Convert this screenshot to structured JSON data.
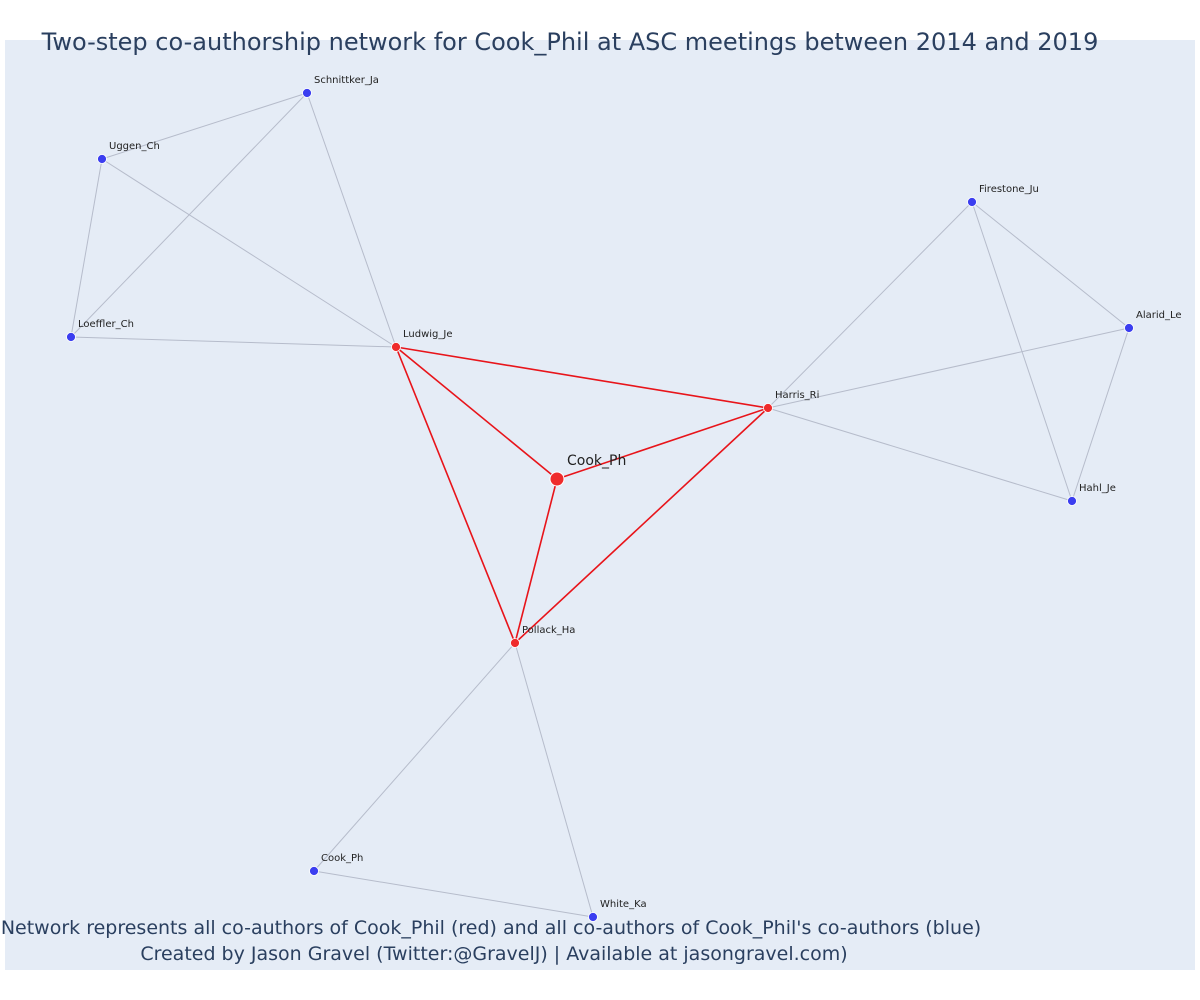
{
  "title": "Two-step co-authorship network for Cook_Phil at ASC meetings between 2014 and 2019",
  "footer": {
    "line1": "Network represents all co-authors of Cook_Phil (red) and all co-authors of Cook_Phil's co-authors (blue)",
    "line2": "Created by Jason Gravel (Twitter:@GravelJ) | Available at jasongravel.com)"
  },
  "colors": {
    "background": "#e5ecf6",
    "text": "#2a3f5f",
    "direct_node": "#ef2b2b",
    "second_node": "#3b3ef0",
    "direct_edge": "#e8141a",
    "second_edge": "#b6bccb"
  },
  "chart_data": {
    "type": "network",
    "focal": "Cook_Ph",
    "nodes": [
      {
        "id": "Cook_Ph",
        "group": "focal"
      },
      {
        "id": "Ludwig_Je",
        "group": "coauthor"
      },
      {
        "id": "Harris_Ri",
        "group": "coauthor"
      },
      {
        "id": "Pollack_Ha",
        "group": "coauthor"
      },
      {
        "id": "Schnittker_Ja",
        "group": "second"
      },
      {
        "id": "Uggen_Ch",
        "group": "second"
      },
      {
        "id": "Loeffler_Ch",
        "group": "second"
      },
      {
        "id": "Firestone_Ju",
        "group": "second"
      },
      {
        "id": "Alarid_Le",
        "group": "second"
      },
      {
        "id": "Hahl_Je",
        "group": "second"
      },
      {
        "id": "Cook_Ph (2)",
        "label": "Cook_Ph",
        "group": "second"
      },
      {
        "id": "White_Ka",
        "group": "second"
      }
    ],
    "edges": [
      {
        "source": "Cook_Ph",
        "target": "Ludwig_Je",
        "group": "direct"
      },
      {
        "source": "Cook_Ph",
        "target": "Harris_Ri",
        "group": "direct"
      },
      {
        "source": "Cook_Ph",
        "target": "Pollack_Ha",
        "group": "direct"
      },
      {
        "source": "Ludwig_Je",
        "target": "Harris_Ri",
        "group": "direct"
      },
      {
        "source": "Ludwig_Je",
        "target": "Pollack_Ha",
        "group": "direct"
      },
      {
        "source": "Harris_Ri",
        "target": "Pollack_Ha",
        "group": "direct"
      },
      {
        "source": "Schnittker_Ja",
        "target": "Uggen_Ch",
        "group": "second"
      },
      {
        "source": "Schnittker_Ja",
        "target": "Loeffler_Ch",
        "group": "second"
      },
      {
        "source": "Schnittker_Ja",
        "target": "Ludwig_Je",
        "group": "second"
      },
      {
        "source": "Uggen_Ch",
        "target": "Loeffler_Ch",
        "group": "second"
      },
      {
        "source": "Uggen_Ch",
        "target": "Ludwig_Je",
        "group": "second"
      },
      {
        "source": "Loeffler_Ch",
        "target": "Ludwig_Je",
        "group": "second"
      },
      {
        "source": "Firestone_Ju",
        "target": "Harris_Ri",
        "group": "second"
      },
      {
        "source": "Firestone_Ju",
        "target": "Alarid_Le",
        "group": "second"
      },
      {
        "source": "Firestone_Ju",
        "target": "Hahl_Je",
        "group": "second"
      },
      {
        "source": "Alarid_Le",
        "target": "Harris_Ri",
        "group": "second"
      },
      {
        "source": "Alarid_Le",
        "target": "Hahl_Je",
        "group": "second"
      },
      {
        "source": "Harris_Ri",
        "target": "Hahl_Je",
        "group": "second"
      },
      {
        "source": "Pollack_Ha",
        "target": "Cook_Ph (2)",
        "group": "second"
      },
      {
        "source": "Pollack_Ha",
        "target": "White_Ka",
        "group": "second"
      },
      {
        "source": "Cook_Ph (2)",
        "target": "White_Ka",
        "group": "second"
      }
    ]
  }
}
